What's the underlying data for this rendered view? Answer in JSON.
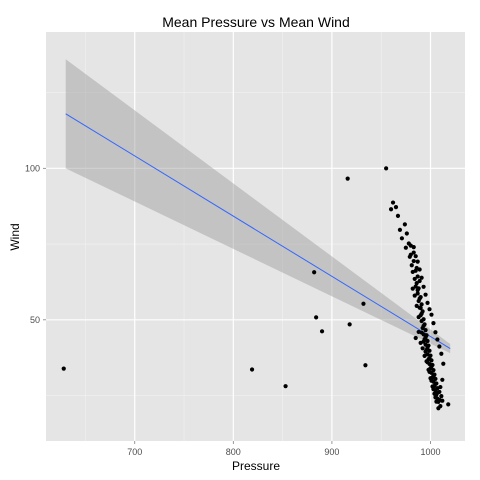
{
  "chart_data": {
    "type": "scatter",
    "title": "Mean Pressure vs Mean Wind",
    "xlabel": "Pressure",
    "ylabel": "Wind",
    "xlim": [
      610,
      1035
    ],
    "ylim": [
      10,
      145
    ],
    "x_ticks": [
      700,
      800,
      900,
      1000
    ],
    "y_ticks": [
      50,
      100
    ],
    "grid": true,
    "legend": "none",
    "colors": {
      "panel": "#e5e5e5",
      "grid_major": "#ffffff",
      "grid_minor": "#f2f2f2",
      "points": "#000000",
      "fit_line": "#3366ff",
      "ribbon": "#999999"
    },
    "fit": {
      "x": [
        630,
        1020
      ],
      "y": [
        118,
        40.5
      ],
      "ci_lower": [
        100,
        39
      ],
      "ci_upper": [
        136,
        42
      ]
    },
    "points": [
      {
        "x": 628,
        "y": 33.9
      },
      {
        "x": 819,
        "y": 33.6
      },
      {
        "x": 853,
        "y": 28.1
      },
      {
        "x": 882,
        "y": 65.7
      },
      {
        "x": 884,
        "y": 50.8
      },
      {
        "x": 890,
        "y": 46.2
      },
      {
        "x": 916,
        "y": 96.6
      },
      {
        "x": 918,
        "y": 48.5
      },
      {
        "x": 932,
        "y": 55.3
      },
      {
        "x": 934,
        "y": 35.0
      },
      {
        "x": 955,
        "y": 100
      },
      {
        "x": 960,
        "y": 86.5
      },
      {
        "x": 962,
        "y": 88.7
      },
      {
        "x": 965,
        "y": 87.2
      },
      {
        "x": 967,
        "y": 84.3
      },
      {
        "x": 969,
        "y": 79.7
      },
      {
        "x": 971,
        "y": 76.9
      },
      {
        "x": 974,
        "y": 81.5
      },
      {
        "x": 975,
        "y": 73.8
      },
      {
        "x": 976,
        "y": 78.5
      },
      {
        "x": 978,
        "y": 75.2
      },
      {
        "x": 979,
        "y": 70.8
      },
      {
        "x": 980,
        "y": 74.5
      },
      {
        "x": 981,
        "y": 68.0
      },
      {
        "x": 982,
        "y": 65.8
      },
      {
        "x": 983,
        "y": 72.2
      },
      {
        "x": 984,
        "y": 63.5
      },
      {
        "x": 985,
        "y": 61.0
      },
      {
        "x": 986,
        "y": 67.1
      },
      {
        "x": 987,
        "y": 58.7
      },
      {
        "x": 987,
        "y": 64.3
      },
      {
        "x": 988,
        "y": 56.2
      },
      {
        "x": 988,
        "y": 60.4
      },
      {
        "x": 989,
        "y": 54.0
      },
      {
        "x": 989,
        "y": 62.8
      },
      {
        "x": 990,
        "y": 51.5
      },
      {
        "x": 990,
        "y": 57.5
      },
      {
        "x": 991,
        "y": 49.6
      },
      {
        "x": 991,
        "y": 55.1
      },
      {
        "x": 992,
        "y": 47.3
      },
      {
        "x": 992,
        "y": 52.8
      },
      {
        "x": 993,
        "y": 45.2
      },
      {
        "x": 993,
        "y": 50.2
      },
      {
        "x": 994,
        "y": 43.6
      },
      {
        "x": 994,
        "y": 48.5
      },
      {
        "x": 995,
        "y": 41.8
      },
      {
        "x": 995,
        "y": 46.6
      },
      {
        "x": 996,
        "y": 40.1
      },
      {
        "x": 996,
        "y": 44.9
      },
      {
        "x": 997,
        "y": 38.6
      },
      {
        "x": 997,
        "y": 43.0
      },
      {
        "x": 998,
        "y": 37.0
      },
      {
        "x": 998,
        "y": 41.5
      },
      {
        "x": 999,
        "y": 35.4
      },
      {
        "x": 999,
        "y": 39.8
      },
      {
        "x": 1000,
        "y": 34.0
      },
      {
        "x": 1000,
        "y": 38.2
      },
      {
        "x": 1001,
        "y": 32.5
      },
      {
        "x": 1001,
        "y": 36.6
      },
      {
        "x": 1002,
        "y": 31.0
      },
      {
        "x": 1002,
        "y": 35.1
      },
      {
        "x": 1003,
        "y": 29.6
      },
      {
        "x": 1003,
        "y": 33.4
      },
      {
        "x": 1004,
        "y": 28.2
      },
      {
        "x": 1004,
        "y": 31.9
      },
      {
        "x": 1005,
        "y": 26.7
      },
      {
        "x": 1005,
        "y": 30.5
      },
      {
        "x": 1006,
        "y": 25.3
      },
      {
        "x": 1006,
        "y": 29.0
      },
      {
        "x": 1007,
        "y": 24.0
      },
      {
        "x": 1007,
        "y": 27.4
      },
      {
        "x": 1008,
        "y": 22.9
      },
      {
        "x": 1009,
        "y": 26.2
      },
      {
        "x": 1010,
        "y": 21.5
      },
      {
        "x": 1011,
        "y": 24.8
      },
      {
        "x": 1012,
        "y": 23.3
      },
      {
        "x": 1018,
        "y": 22.1
      },
      {
        "x": 985,
        "y": 44.0
      },
      {
        "x": 988,
        "y": 46.0
      },
      {
        "x": 990,
        "y": 42.4
      },
      {
        "x": 992,
        "y": 40.6
      },
      {
        "x": 994,
        "y": 38.1
      },
      {
        "x": 996,
        "y": 36.3
      },
      {
        "x": 998,
        "y": 33.5
      },
      {
        "x": 1000,
        "y": 30.7
      },
      {
        "x": 1002,
        "y": 28.0
      },
      {
        "x": 1004,
        "y": 25.6
      },
      {
        "x": 1006,
        "y": 23.0
      },
      {
        "x": 983,
        "y": 69.4
      },
      {
        "x": 985,
        "y": 66.2
      },
      {
        "x": 986,
        "y": 62.1
      },
      {
        "x": 987,
        "y": 59.8
      },
      {
        "x": 989,
        "y": 57.0
      },
      {
        "x": 990,
        "y": 53.9
      },
      {
        "x": 991,
        "y": 52.0
      },
      {
        "x": 993,
        "y": 48.0
      },
      {
        "x": 995,
        "y": 44.1
      },
      {
        "x": 997,
        "y": 40.9
      },
      {
        "x": 999,
        "y": 37.3
      },
      {
        "x": 1001,
        "y": 34.6
      },
      {
        "x": 1003,
        "y": 31.5
      },
      {
        "x": 1005,
        "y": 28.8
      },
      {
        "x": 1007,
        "y": 25.9
      },
      {
        "x": 1009,
        "y": 23.6
      },
      {
        "x": 980,
        "y": 71.5
      },
      {
        "x": 982,
        "y": 60.3
      },
      {
        "x": 984,
        "y": 58.0
      },
      {
        "x": 986,
        "y": 54.6
      },
      {
        "x": 988,
        "y": 50.9
      },
      {
        "x": 991,
        "y": 45.8
      },
      {
        "x": 993,
        "y": 42.8
      },
      {
        "x": 995,
        "y": 39.5
      },
      {
        "x": 997,
        "y": 36.0
      },
      {
        "x": 999,
        "y": 32.8
      },
      {
        "x": 1001,
        "y": 29.9
      },
      {
        "x": 1003,
        "y": 27.1
      },
      {
        "x": 1005,
        "y": 24.4
      },
      {
        "x": 1008,
        "y": 20.8
      },
      {
        "x": 1010,
        "y": 27.8
      },
      {
        "x": 1012,
        "y": 30.2
      },
      {
        "x": 1013,
        "y": 35.5
      },
      {
        "x": 1011,
        "y": 38.8
      },
      {
        "x": 1009,
        "y": 41.2
      },
      {
        "x": 1007,
        "y": 43.5
      },
      {
        "x": 1005,
        "y": 45.9
      },
      {
        "x": 1003,
        "y": 48.9
      },
      {
        "x": 1001,
        "y": 51.7
      },
      {
        "x": 999,
        "y": 53.5
      },
      {
        "x": 997,
        "y": 55.6
      },
      {
        "x": 995,
        "y": 58.3
      },
      {
        "x": 993,
        "y": 60.9
      },
      {
        "x": 991,
        "y": 63.9
      },
      {
        "x": 989,
        "y": 66.6
      },
      {
        "x": 987,
        "y": 69.2
      },
      {
        "x": 985,
        "y": 71.0
      },
      {
        "x": 983,
        "y": 74.0
      }
    ]
  }
}
